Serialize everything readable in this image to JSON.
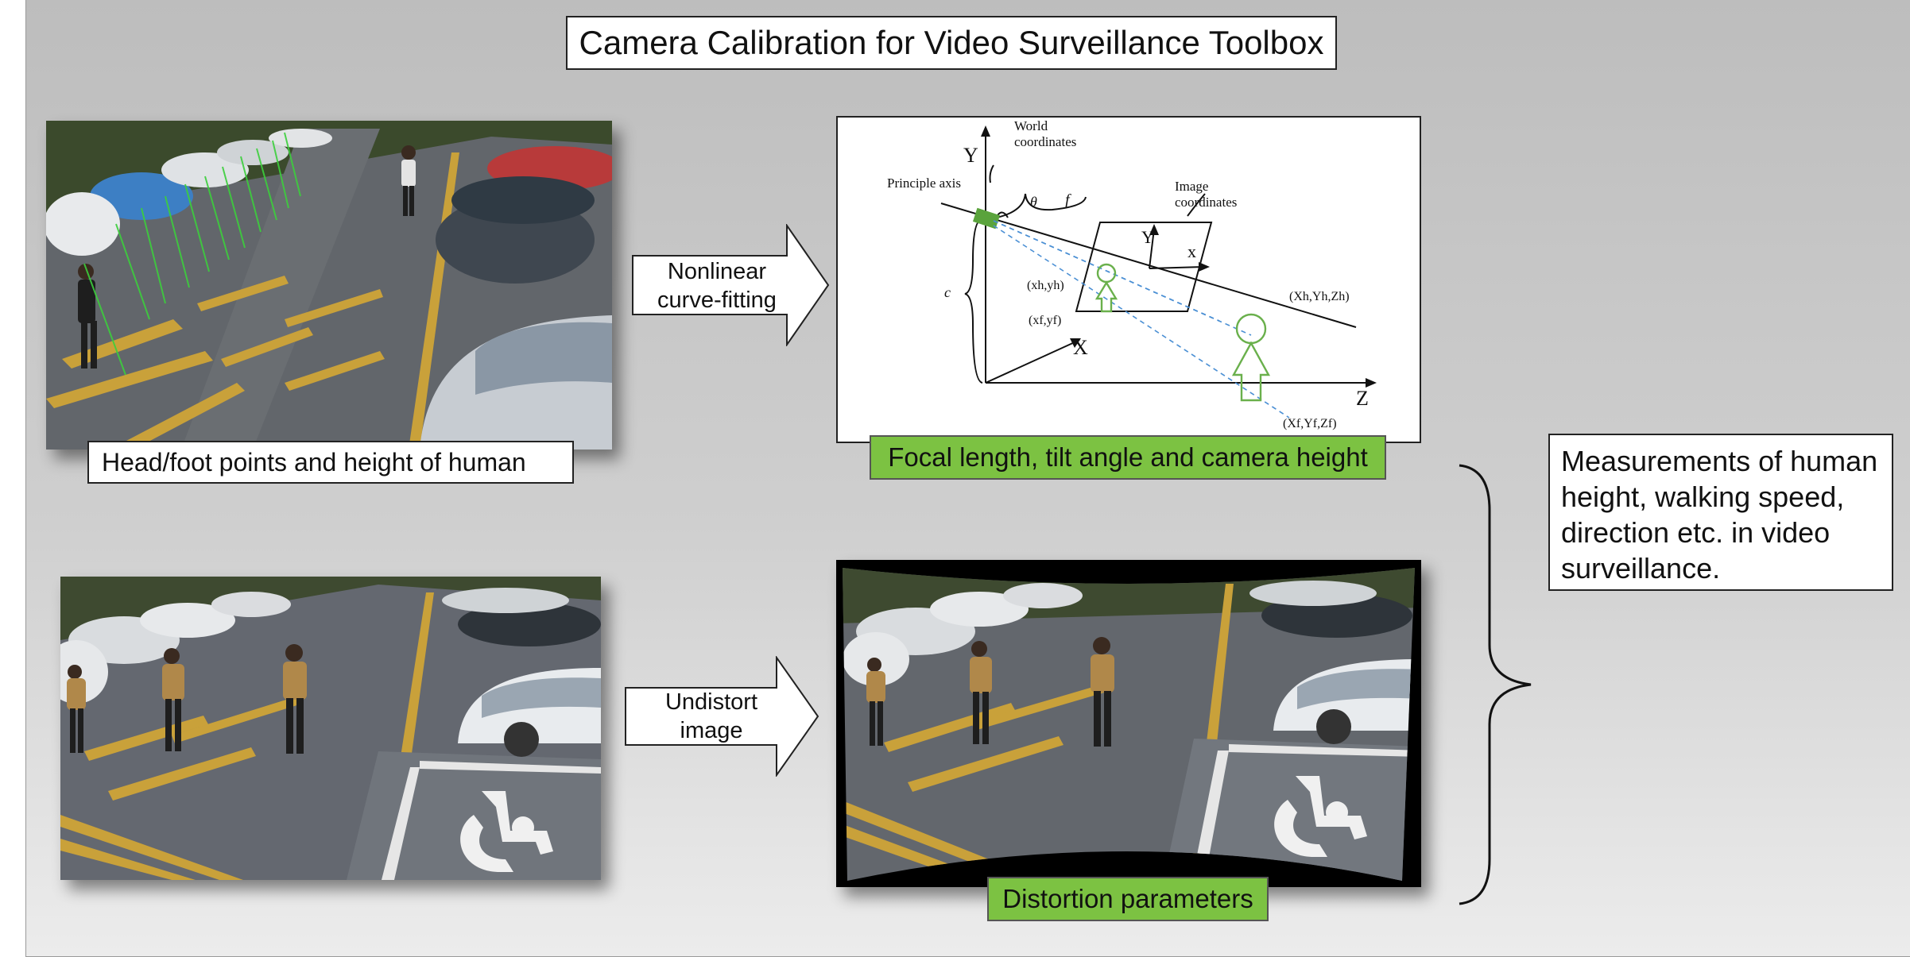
{
  "title": "Camera Calibration for Video Surveillance Toolbox",
  "captions": {
    "head_foot": "Head/foot points and height of human",
    "focal": "Focal length, tilt angle and camera height",
    "distortion": "Distortion parameters"
  },
  "arrows": {
    "nonlinear": [
      "Nonlinear",
      "curve-fitting"
    ],
    "undistort": [
      "Undistort",
      "image"
    ]
  },
  "measurements": "Measurements of human height, walking speed, direction etc. in video surveillance.",
  "diagram_labels": {
    "y_axis": "Y",
    "x_axis": "X",
    "z_axis": "Z",
    "world": [
      "World",
      "coordinates"
    ],
    "principle_axis": "Principle axis",
    "theta": "θ",
    "f": "f",
    "c": "c",
    "image_coords": [
      "Image",
      "coordinates"
    ],
    "img_y": "Y",
    "img_x": "x",
    "xh_yh": "(xh,yh)",
    "xf_yf": "(xf,yf)",
    "Xh": "(Xh,Yh,Zh)",
    "Xf": "(Xf,Yf,Zf)"
  },
  "colors": {
    "accent_green": "#7cc242",
    "slide_gray": "#c4c4c4",
    "figure_green": "#6ab04c",
    "ray_blue": "#4a8fd4"
  }
}
